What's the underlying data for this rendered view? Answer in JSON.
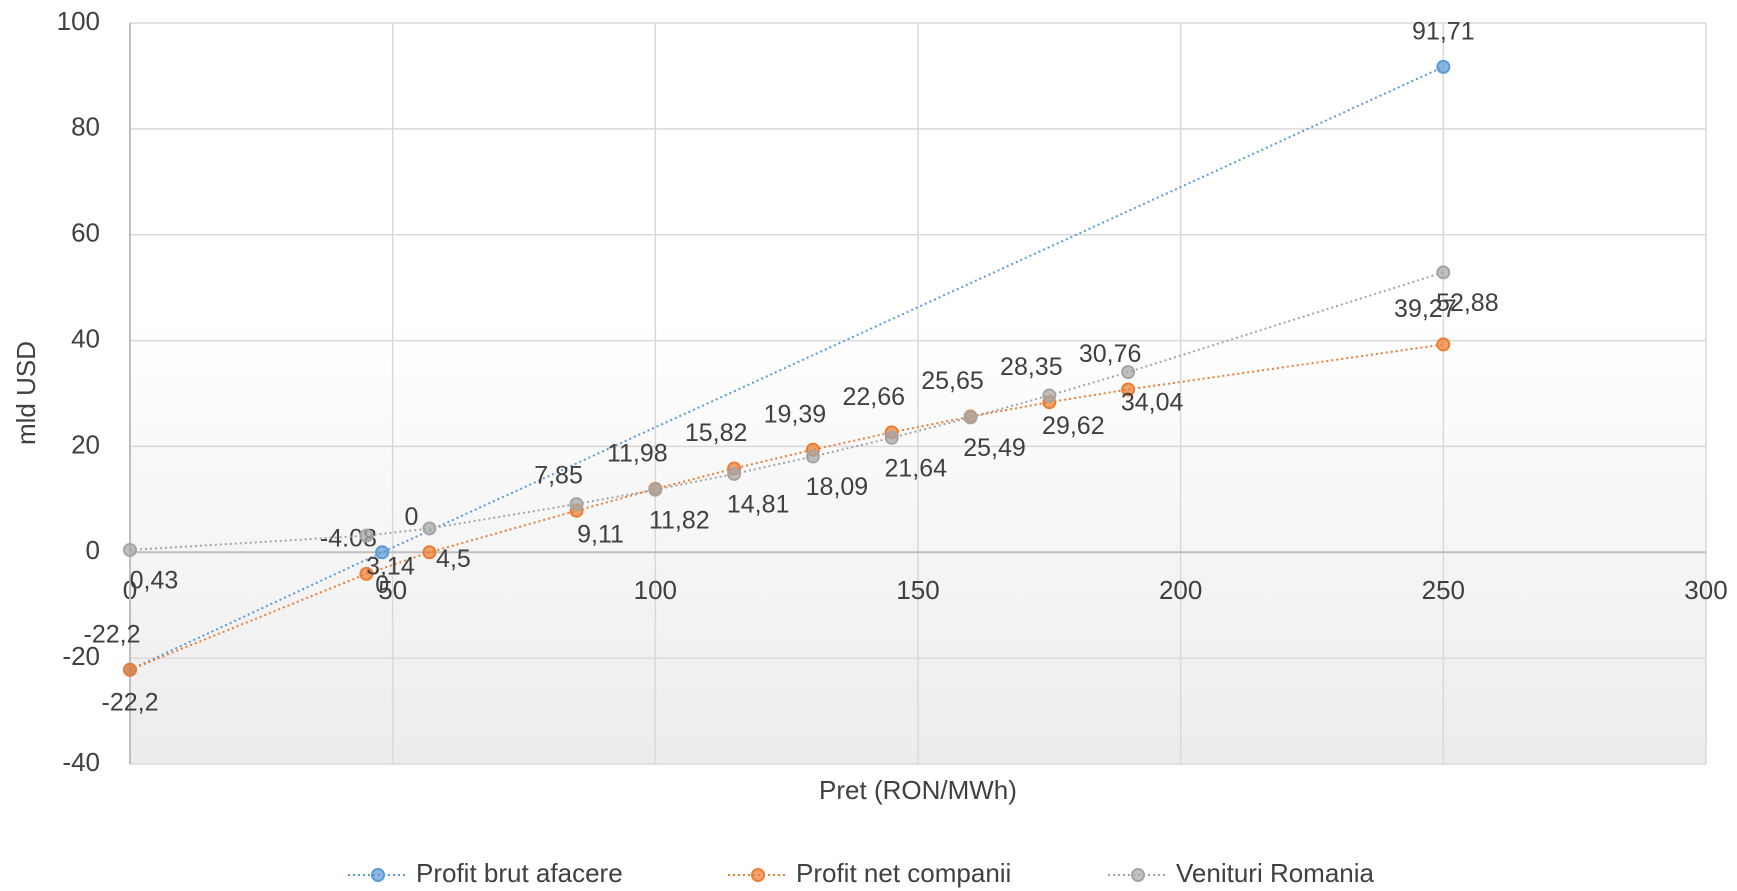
{
  "chart_data": {
    "type": "scatter",
    "x_label": "Pret (RON/MWh)",
    "y_label": "mld USD",
    "xlim": [
      0,
      300
    ],
    "xticks": [
      0,
      50,
      100,
      150,
      200,
      250,
      300
    ],
    "ylim": [
      -40,
      100
    ],
    "yticks": [
      -40,
      -20,
      0,
      20,
      40,
      60,
      80,
      100
    ],
    "grid": true,
    "legend": "bottom",
    "series": [
      {
        "name": "Profit brut afacere",
        "color": "#5b9bd5",
        "x": [
          0,
          48,
          250
        ],
        "values": [
          -22.2,
          0,
          91.71
        ],
        "value_labels": [
          "-22,2",
          "0",
          "91,71"
        ]
      },
      {
        "name": "Profit net companii",
        "color": "#ed7d31",
        "x": [
          0,
          45,
          57,
          85,
          100,
          115,
          130,
          145,
          160,
          175,
          190,
          250
        ],
        "values": [
          -22.2,
          -4.08,
          0,
          7.85,
          11.98,
          15.82,
          19.39,
          22.66,
          25.65,
          28.35,
          30.76,
          39.27
        ],
        "value_labels": [
          "-22,2",
          "-4.08",
          "0",
          "7,85",
          "11,98",
          "15,82",
          "19,39",
          "22,66",
          "25,65",
          "28,35",
          "30,76",
          "39,27"
        ]
      },
      {
        "name": "Venituri Romania",
        "color": "#a5a5a5",
        "x": [
          0,
          45,
          57,
          85,
          100,
          115,
          130,
          145,
          160,
          175,
          190,
          250
        ],
        "values": [
          0.43,
          3.14,
          4.5,
          9.11,
          11.82,
          14.81,
          18.09,
          21.64,
          25.49,
          29.62,
          34.04,
          52.88
        ],
        "value_labels": [
          "0,43",
          "3,14",
          "4,5",
          "9,11",
          "11,82",
          "14,81",
          "18,09",
          "21,64",
          "25,49",
          "29,62",
          "34,04",
          "52,88"
        ]
      }
    ]
  }
}
